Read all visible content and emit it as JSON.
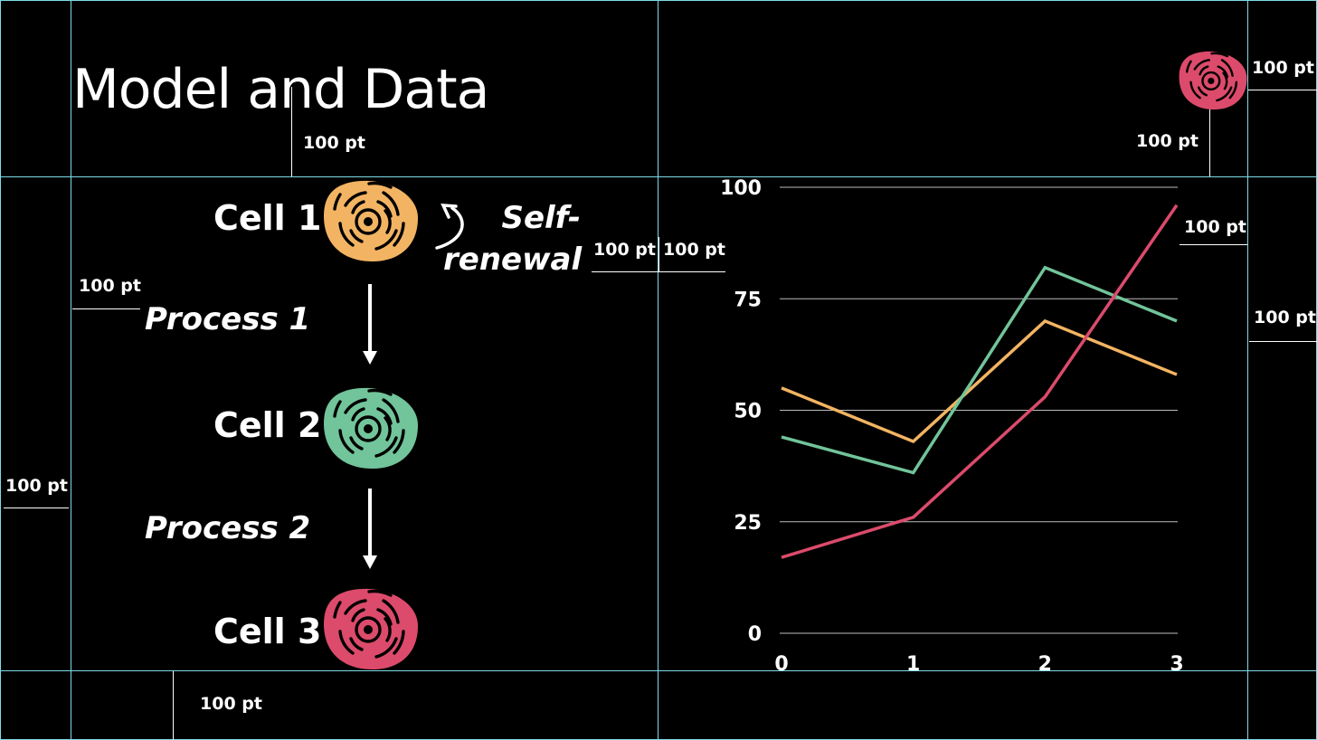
{
  "title": "Model and Data",
  "measure_label": "100 pt",
  "cells": [
    {
      "label": "Cell 1",
      "color": "#f2b462"
    },
    {
      "label": "Cell 2",
      "color": "#72c49a"
    },
    {
      "label": "Cell 3",
      "color": "#dc4b6b"
    }
  ],
  "processes": [
    "Process 1",
    "Process 2"
  ],
  "self_renewal": {
    "line1": "Self-",
    "line2": "renewal"
  },
  "corner_icon_color": "#dc4b6b",
  "guide_color": "#7fdbe8",
  "chart_data": {
    "type": "line",
    "x": [
      0,
      1,
      2,
      3
    ],
    "y_ticks": [
      0,
      25,
      50,
      75,
      100
    ],
    "x_ticks": [
      0,
      1,
      2,
      3
    ],
    "ylim": [
      0,
      100
    ],
    "xlim": [
      0,
      3
    ],
    "grid": true,
    "series": [
      {
        "color": "#f2b462",
        "values": [
          55,
          43,
          70,
          58
        ]
      },
      {
        "color": "#72c49a",
        "values": [
          44,
          36,
          82,
          70
        ]
      },
      {
        "color": "#dc4b6b",
        "values": [
          17,
          26,
          53,
          96
        ]
      }
    ]
  }
}
